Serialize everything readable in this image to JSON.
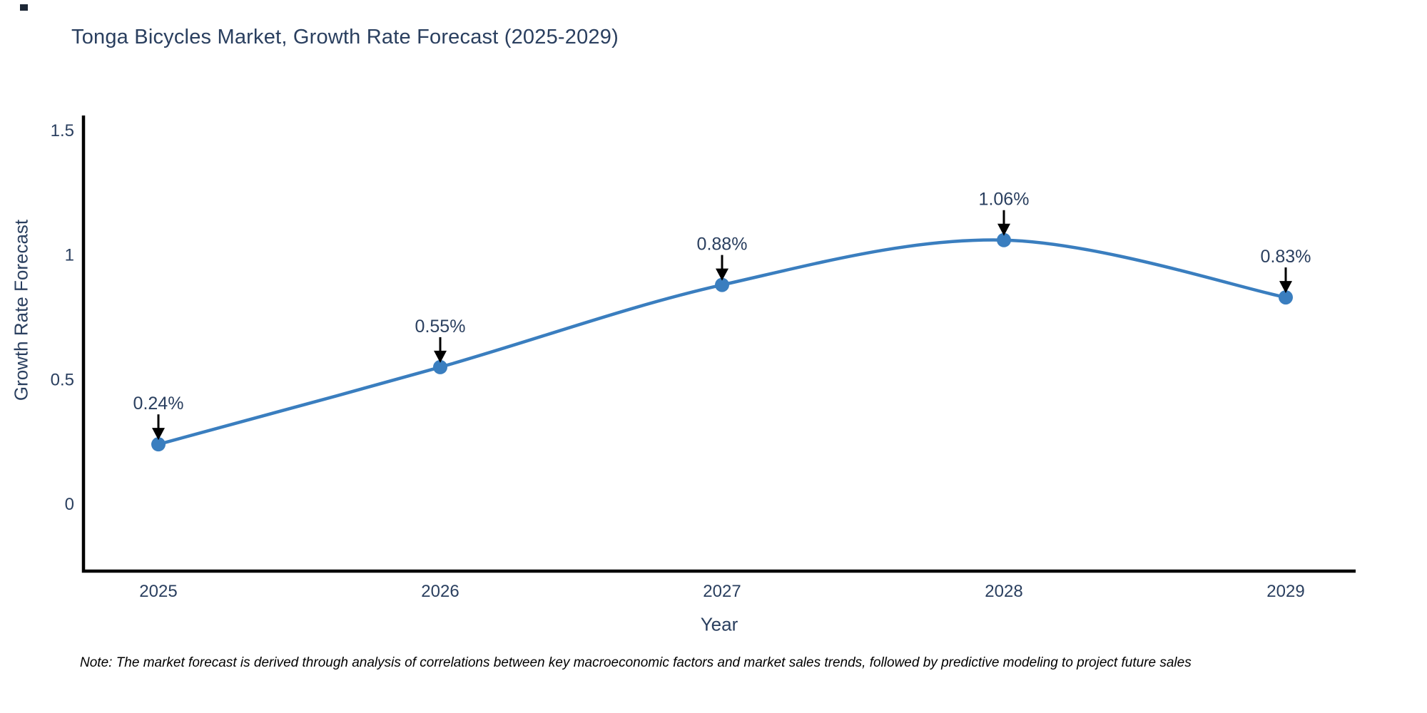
{
  "title": "Tonga Bicycles Market, Growth Rate Forecast (2025-2029)",
  "note": "Note: The market forecast is derived through analysis of correlations between key macroeconomic factors and market sales trends, followed by predictive modeling to project future sales",
  "chart_data": {
    "type": "line",
    "title": "Tonga Bicycles Market, Growth Rate Forecast (2025-2029)",
    "xlabel": "Year",
    "ylabel": "Growth Rate Forecast",
    "categories": [
      "2025",
      "2026",
      "2027",
      "2028",
      "2029"
    ],
    "series": [
      {
        "name": "Growth Rate Forecast",
        "values": [
          0.24,
          0.55,
          0.88,
          1.06,
          0.83
        ]
      }
    ],
    "point_labels": [
      "0.24%",
      "0.55%",
      "0.88%",
      "1.06%",
      "0.83%"
    ],
    "yticks": [
      0,
      0.5,
      1,
      1.5
    ],
    "ytick_labels": [
      "0",
      "0.5",
      "1",
      "1.5"
    ],
    "ylim": [
      -0.27,
      1.56
    ],
    "grid": false,
    "legend_position": "none",
    "line_style": "smooth-spline",
    "colors": {
      "line": "#3a7ebf",
      "marker": "#3a7ebf",
      "axis": "#000000",
      "text": "#2a3f5f",
      "annotation_arrow": "#000000",
      "note_text": "#000000"
    }
  }
}
